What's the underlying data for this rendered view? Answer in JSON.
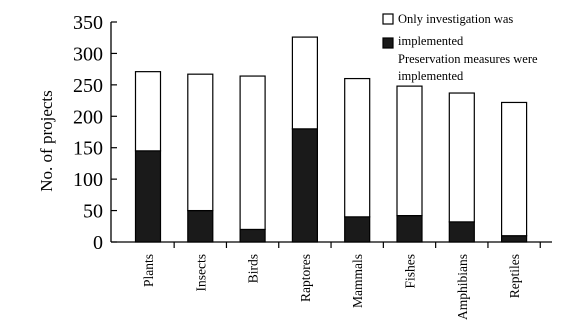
{
  "chart_data": {
    "type": "bar",
    "stacked": true,
    "title": "",
    "xlabel": "",
    "ylabel": "No. of projects",
    "ylim": [
      0,
      350
    ],
    "yticks": [
      0,
      50,
      100,
      150,
      200,
      250,
      300,
      350
    ],
    "grid": false,
    "legend_position": "top-right",
    "categories": [
      "Plants",
      "Insects",
      "Birds",
      "Raptores",
      "Mammals",
      "Fishes",
      "Amphibians",
      "Reptiles"
    ],
    "series": [
      {
        "name": "Preservation measures were implemented",
        "color": "#1a1a1a",
        "values": [
          145,
          50,
          20,
          180,
          40,
          42,
          32,
          10
        ]
      },
      {
        "name": "Only investigation was implemented",
        "color": "#ffffff",
        "values": [
          126,
          217,
          244,
          146,
          220,
          206,
          205,
          212
        ]
      }
    ],
    "totals": [
      271,
      267,
      264,
      326,
      260,
      248,
      237,
      222
    ]
  },
  "legend": {
    "items": [
      {
        "label_lines": [
          "Only investigation was",
          "implemented"
        ],
        "color": "#ffffff"
      },
      {
        "label_lines": [
          "Preservation measures were",
          "implemented"
        ],
        "color": "#1a1a1a"
      }
    ]
  }
}
